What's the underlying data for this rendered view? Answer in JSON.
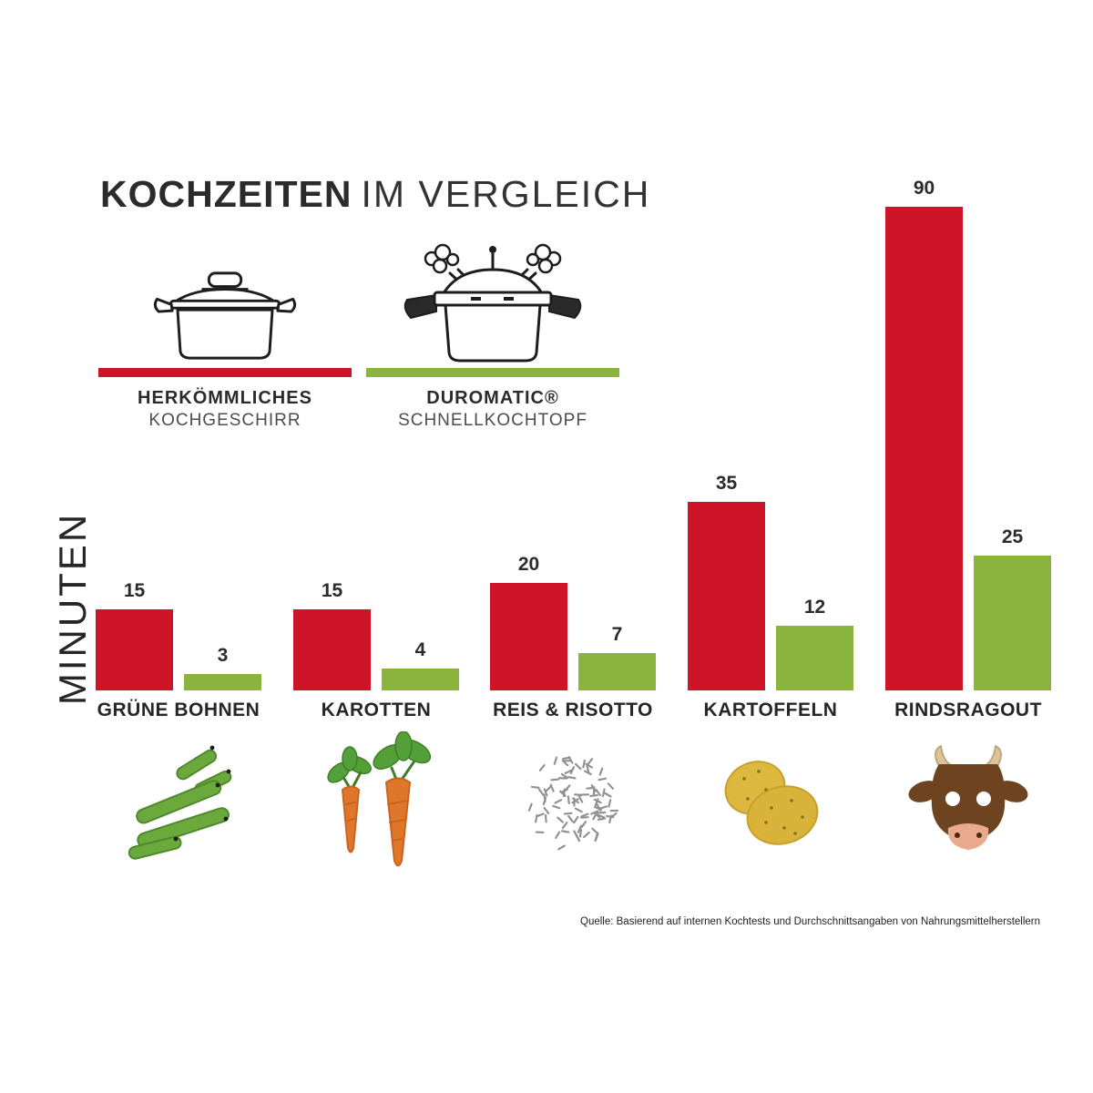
{
  "title": {
    "bold": "KOCHZEITEN",
    "light": "IM VERGLEICH"
  },
  "legend": {
    "items": [
      {
        "line1": "HERKÖMMLICHES",
        "line2": "KOCHGESCHIRR",
        "color": "#CD1428",
        "icon": "pot-icon"
      },
      {
        "line1": "DUROMATIC®",
        "line2": "SCHNELLKOCHTOPF",
        "color": "#8AB43E",
        "icon": "pressure-cooker-icon"
      }
    ]
  },
  "chart_data": {
    "type": "bar",
    "categories": [
      "GRÜNE BOHNEN",
      "KAROTTEN",
      "REIS & RISOTTO",
      "KARTOFFELN",
      "RINDSRAGOUT"
    ],
    "series": [
      {
        "name": "HERKÖMMLICHES KOCHGESCHIRR",
        "color": "#CD1428",
        "values": [
          15,
          15,
          20,
          35,
          90
        ]
      },
      {
        "name": "DUROMATIC® SCHNELLKOCHTOPF",
        "color": "#8AB43E",
        "values": [
          3,
          4,
          7,
          12,
          25
        ]
      }
    ],
    "ylabel": "MINUTEN",
    "xlabel": "",
    "ylim": [
      0,
      90
    ],
    "grid": false,
    "value_labels": true,
    "legend_position": "top-left"
  },
  "food_icons": [
    "green-beans-icon",
    "carrots-icon",
    "rice-icon",
    "potatoes-icon",
    "cow-icon"
  ],
  "footer": {
    "source": "Quelle: Basierend auf internen Kochtests und Durchschnittsangaben von Nahrungsmittelherstellern"
  }
}
